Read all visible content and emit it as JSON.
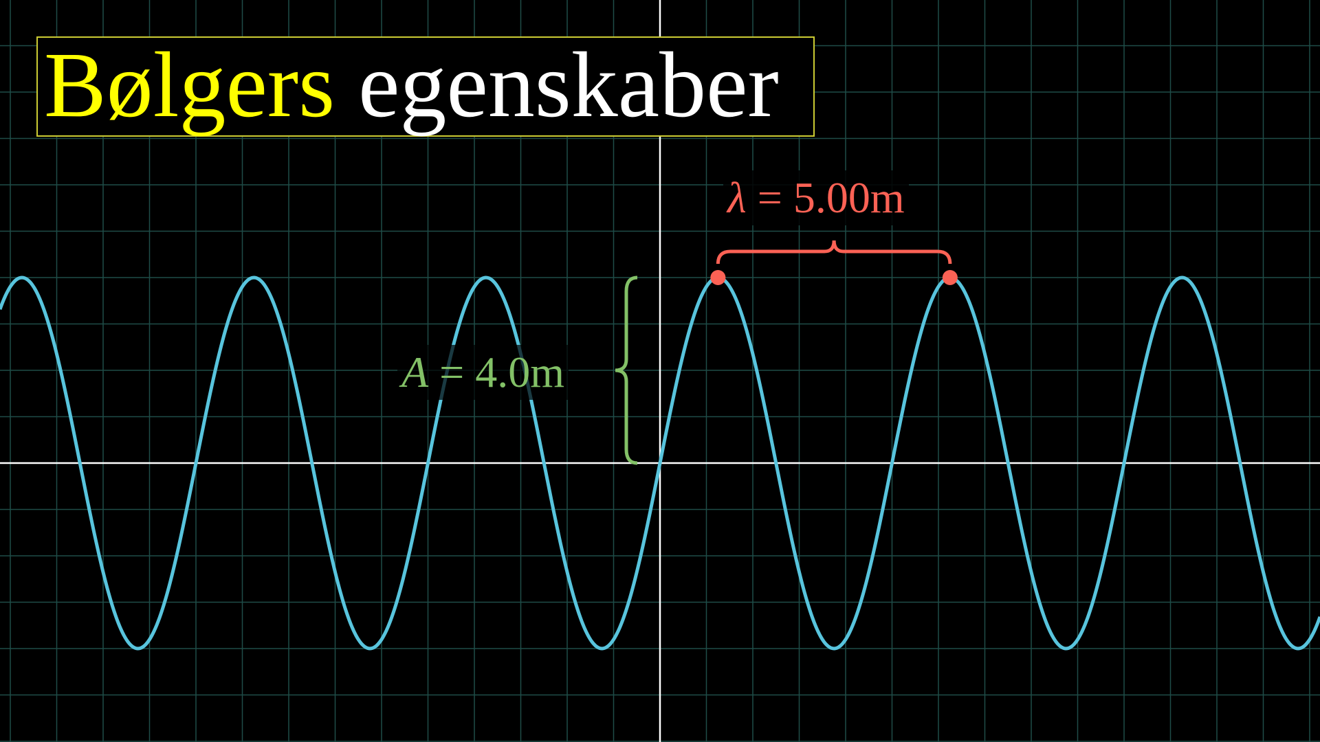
{
  "title": {
    "word_1": "Bølgers",
    "word_2": "egenskaber"
  },
  "colors": {
    "background": "#000000",
    "grid": "#1f4d48",
    "axes": "#ffffff",
    "wave": "#58c4dd",
    "wavelength": "#fc6255",
    "amplitude": "#83c167",
    "title_highlight": "#ffff00",
    "title_border": "#cccc33"
  },
  "labels": {
    "wavelength": {
      "symbol": "λ",
      "equals": " = ",
      "value": "5.00m"
    },
    "amplitude": {
      "symbol": "A",
      "equals": " = ",
      "value": "4.0m"
    }
  },
  "wave": {
    "amplitude_m": 4.0,
    "wavelength_m": 5.0,
    "grid_unit_m": 0.5,
    "shape": "sine"
  },
  "icons": {
    "wavelength_brace": "horizontal-curly-brace",
    "amplitude_brace": "vertical-curly-brace",
    "crest_markers": "dot"
  }
}
